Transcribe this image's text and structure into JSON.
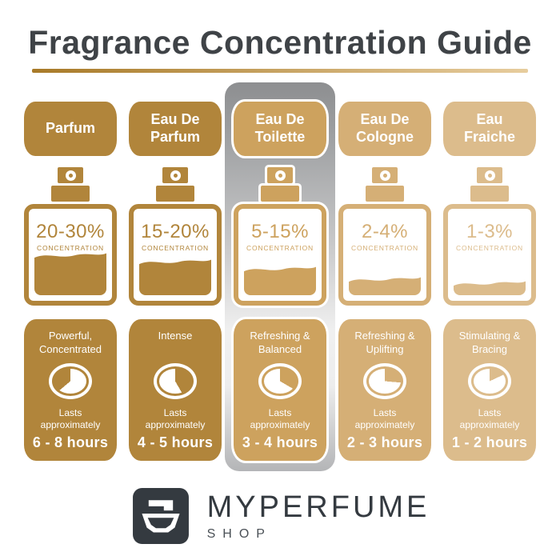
{
  "title": "Fragrance Concentration Guide",
  "columns": [
    {
      "name": "Parfum",
      "concentration": "20-30%",
      "concentration_label": "CONCENTRATION",
      "fill_percent": 40,
      "trait": "Powerful,\nConcentrated",
      "lasts_label": "Lasts\napproximately",
      "duration": "6 - 8 hours",
      "color": "#B1853B",
      "clock_gold_wedge": [
        230,
        360
      ],
      "highlighted": false
    },
    {
      "name": "Eau De\nParfum",
      "concentration": "15-20%",
      "concentration_label": "CONCENTRATION",
      "fill_percent": 33,
      "trait": "Intense",
      "lasts_label": "Lasts\napproximately",
      "duration": "4 - 5 hours",
      "color": "#B1853B",
      "clock_gold_wedge": [
        0,
        150
      ],
      "highlighted": false
    },
    {
      "name": "Eau De\nToilette",
      "concentration": "5-15%",
      "concentration_label": "CONCENTRATION",
      "fill_percent": 25,
      "trait": "Refreshing &\nBalanced",
      "lasts_label": "Lasts\napproximately",
      "duration": "3 - 4 hours",
      "color": "#CDA25E",
      "clock_gold_wedge": [
        0,
        120
      ],
      "highlighted": true
    },
    {
      "name": "Eau De\nCologne",
      "concentration": "2-4%",
      "concentration_label": "CONCENTRATION",
      "fill_percent": 14,
      "trait": "Refreshing &\nUplifting",
      "lasts_label": "Lasts\napproximately",
      "duration": "2 - 3 hours",
      "color": "#D5AF76",
      "clock_gold_wedge": [
        0,
        95
      ],
      "highlighted": false
    },
    {
      "name": "Eau\nFraiche",
      "concentration": "1-3%",
      "concentration_label": "CONCENTRATION",
      "fill_percent": 10,
      "trait": "Stimulating &\nBracing",
      "lasts_label": "Lasts\napproximately",
      "duration": "1 - 2 hours",
      "color": "#DCBC8C",
      "clock_gold_wedge": [
        0,
        65
      ],
      "highlighted": false
    }
  ],
  "brand": {
    "name": "MYPERFUME",
    "sub": "SHOP"
  },
  "colors": {
    "title": "#3F4347",
    "underline_from": "#A87A28",
    "underline_to": "#E7CD9E",
    "highlight_top": "#8D8E90",
    "highlight_mid": "#F0F0F0",
    "highlight_bottom": "#B4B5B7",
    "logo_dark": "#343A40"
  }
}
